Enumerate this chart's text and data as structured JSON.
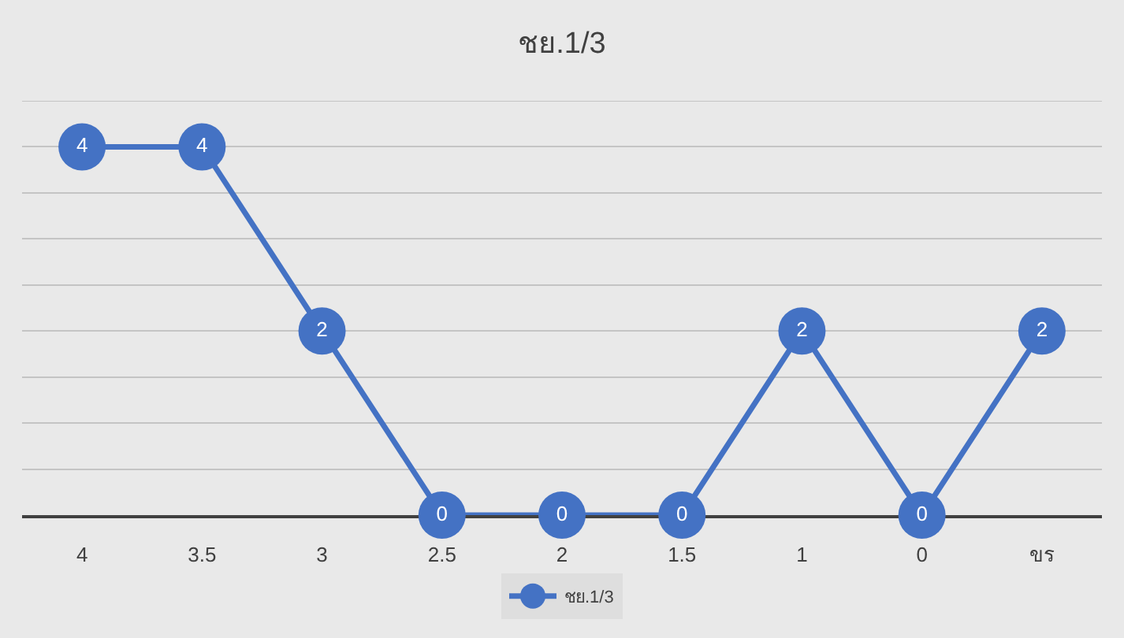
{
  "chart_data": {
    "type": "line",
    "title": "ชย.1/3",
    "categories": [
      "4",
      "3.5",
      "3",
      "2.5",
      "2",
      "1.5",
      "1",
      "0",
      "ขร"
    ],
    "series": [
      {
        "name": "ชย.1/3",
        "color": "#4472c4",
        "values": [
          4,
          4,
          2,
          0,
          0,
          0,
          2,
          0,
          2
        ]
      }
    ],
    "ylim": [
      0,
      4.5
    ],
    "yticks": [
      {
        "value": 0,
        "label": null
      },
      {
        "value": 0.5,
        "label": null
      },
      {
        "value": 1,
        "label": null
      },
      {
        "value": 1.5,
        "label": null
      },
      {
        "value": 2,
        "label": null
      },
      {
        "value": 2.5,
        "label": null
      },
      {
        "value": 3,
        "label": null
      },
      {
        "value": 3.5,
        "label": null
      },
      {
        "value": 4,
        "label": null
      },
      {
        "value": 4.5,
        "label": null
      }
    ],
    "tick_labels": "x",
    "grid": "y",
    "legend": "bottom",
    "marker": "circle",
    "line_style": "solid",
    "data_labels": true
  }
}
